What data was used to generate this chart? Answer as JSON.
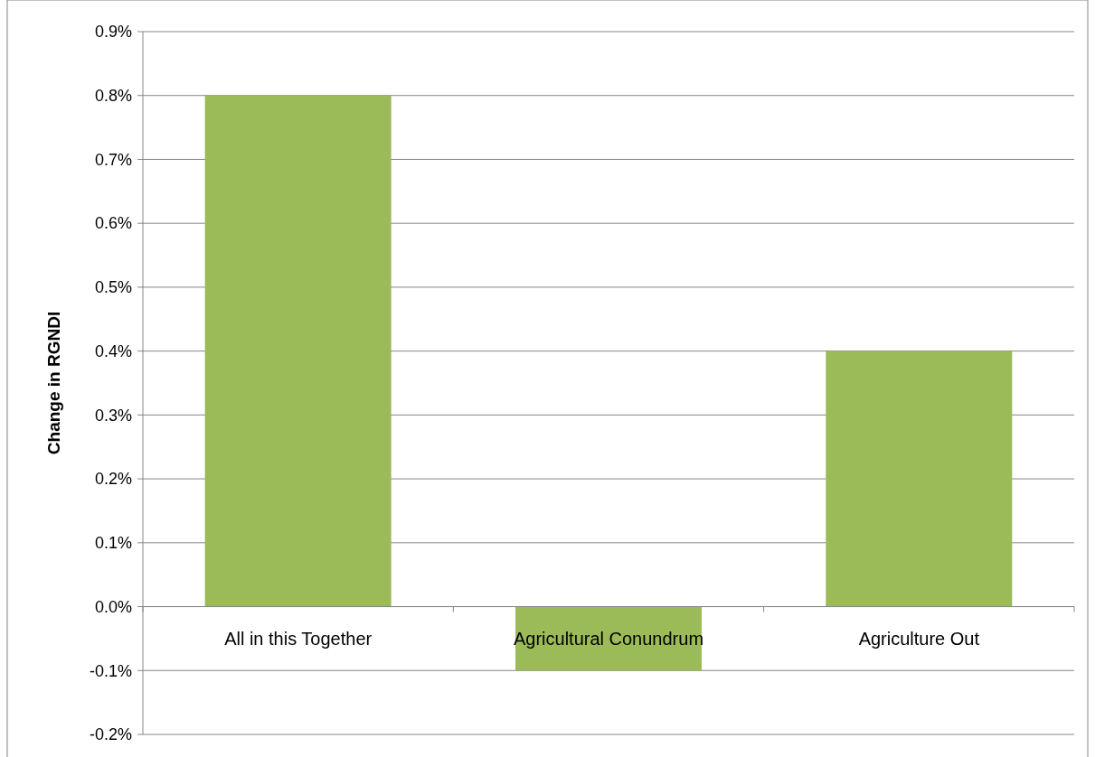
{
  "chart_data": {
    "type": "bar",
    "ylabel": "Change in RGNDI",
    "categories": [
      "All in this Together",
      "Agricultural Conundrum",
      "Agriculture Out"
    ],
    "values": [
      0.8,
      -0.1,
      0.4
    ],
    "color": "#9bbb59",
    "ylim": [
      -0.2,
      0.9
    ],
    "yticks": [
      {
        "value": -0.2,
        "label": "-0.2%"
      },
      {
        "value": -0.1,
        "label": "-0.1%"
      },
      {
        "value": 0,
        "label": "0.0%"
      },
      {
        "value": 0.1,
        "label": "0.1%"
      },
      {
        "value": 0.2,
        "label": "0.2%"
      },
      {
        "value": 0.3,
        "label": "0.3%"
      },
      {
        "value": 0.4,
        "label": "0.4%"
      },
      {
        "value": 0.5,
        "label": "0.5%"
      },
      {
        "value": 0.6,
        "label": "0.6%"
      },
      {
        "value": 0.7,
        "label": "0.7%"
      },
      {
        "value": 0.8,
        "label": "0.8%"
      },
      {
        "value": 0.9,
        "label": "0.9%"
      }
    ],
    "grid": "y"
  }
}
